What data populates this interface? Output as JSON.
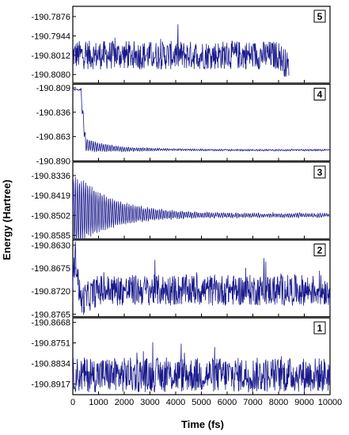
{
  "chart_data": {
    "type": "line",
    "xlabel": "Time (fs)",
    "ylabel": "Energy (Hartree)",
    "xlim": [
      0,
      10000
    ],
    "xticks": [
      0,
      1000,
      2000,
      3000,
      4000,
      5000,
      6000,
      7000,
      8000,
      9000,
      10000
    ],
    "line_color": "#1a1a8c",
    "panels": [
      {
        "number": "5",
        "ylim": [
          -190.811,
          -190.784
        ],
        "yticks": [
          "-190.7876",
          "-190.7944",
          "-190.8012",
          "-190.8080"
        ],
        "series": {
          "x_end": 8400,
          "base": -190.8012,
          "noise_amp": 0.005,
          "points": [
            [
              0,
              -190.801
            ],
            [
              1000,
              -190.8012
            ],
            [
              2000,
              -190.8011
            ],
            [
              3000,
              -190.8013
            ],
            [
              4000,
              -190.8012
            ],
            [
              5000,
              -190.8012
            ],
            [
              6000,
              -190.8011
            ],
            [
              7000,
              -190.8012
            ],
            [
              8000,
              -190.8012
            ],
            [
              8400,
              -190.8055
            ]
          ]
        }
      },
      {
        "number": "4",
        "ylim": [
          -190.89,
          -190.805
        ],
        "yticks": [
          "-190.809",
          "-190.836",
          "-190.863",
          "-190.890"
        ],
        "series": {
          "x_end": 10000,
          "base": -190.878,
          "plateau_until": 300,
          "plateau_value": -190.811,
          "osc_amp": 0.008,
          "noise_amp": 0.0006,
          "points": [
            [
              0,
              -190.811
            ],
            [
              300,
              -190.811
            ],
            [
              500,
              -190.872
            ],
            [
              1000,
              -190.875
            ],
            [
              2000,
              -190.877
            ],
            [
              4000,
              -190.8775
            ],
            [
              6000,
              -190.878
            ],
            [
              8000,
              -190.878
            ],
            [
              10000,
              -190.878
            ]
          ]
        }
      },
      {
        "number": "3",
        "ylim": [
          -190.86,
          -190.828
        ],
        "yticks": [
          "-190.8336",
          "-190.8419",
          "-190.8502",
          "-190.8585"
        ],
        "series": {
          "x_end": 10000,
          "base": -190.8502,
          "osc_amp": 0.016,
          "noise_amp": 0.0004,
          "points": [
            [
              0,
              -190.8502
            ],
            [
              500,
              -190.848
            ],
            [
              1000,
              -190.849
            ],
            [
              2000,
              -190.8495
            ],
            [
              4000,
              -190.85
            ],
            [
              6000,
              -190.8502
            ],
            [
              8000,
              -190.8502
            ],
            [
              10000,
              -190.8502
            ]
          ]
        }
      },
      {
        "number": "2",
        "ylim": [
          -190.877,
          -190.862
        ],
        "yticks": [
          "-190.8630",
          "-190.8675",
          "-190.8720",
          "-190.8765"
        ],
        "series": {
          "x_end": 10000,
          "base": -190.8718,
          "noise_amp": 0.003,
          "points": [
            [
              0,
              -190.87
            ],
            [
              100,
              -190.865
            ],
            [
              300,
              -190.874
            ],
            [
              1000,
              -190.8718
            ],
            [
              3000,
              -190.8718
            ],
            [
              5000,
              -190.8718
            ],
            [
              7000,
              -190.8718
            ],
            [
              9000,
              -190.8718
            ],
            [
              10000,
              -190.8718
            ]
          ]
        }
      },
      {
        "number": "1",
        "ylim": [
          -190.896,
          -190.865
        ],
        "yticks": [
          "-190.8668",
          "-190.8751",
          "-190.8834",
          "-190.8917"
        ],
        "series": {
          "x_end": 10000,
          "base": -190.888,
          "noise_amp": 0.007,
          "points": [
            [
              0,
              -190.888
            ],
            [
              2000,
              -190.888
            ],
            [
              4000,
              -190.888
            ],
            [
              6000,
              -190.888
            ],
            [
              8000,
              -190.888
            ],
            [
              10000,
              -190.888
            ]
          ]
        }
      }
    ]
  }
}
